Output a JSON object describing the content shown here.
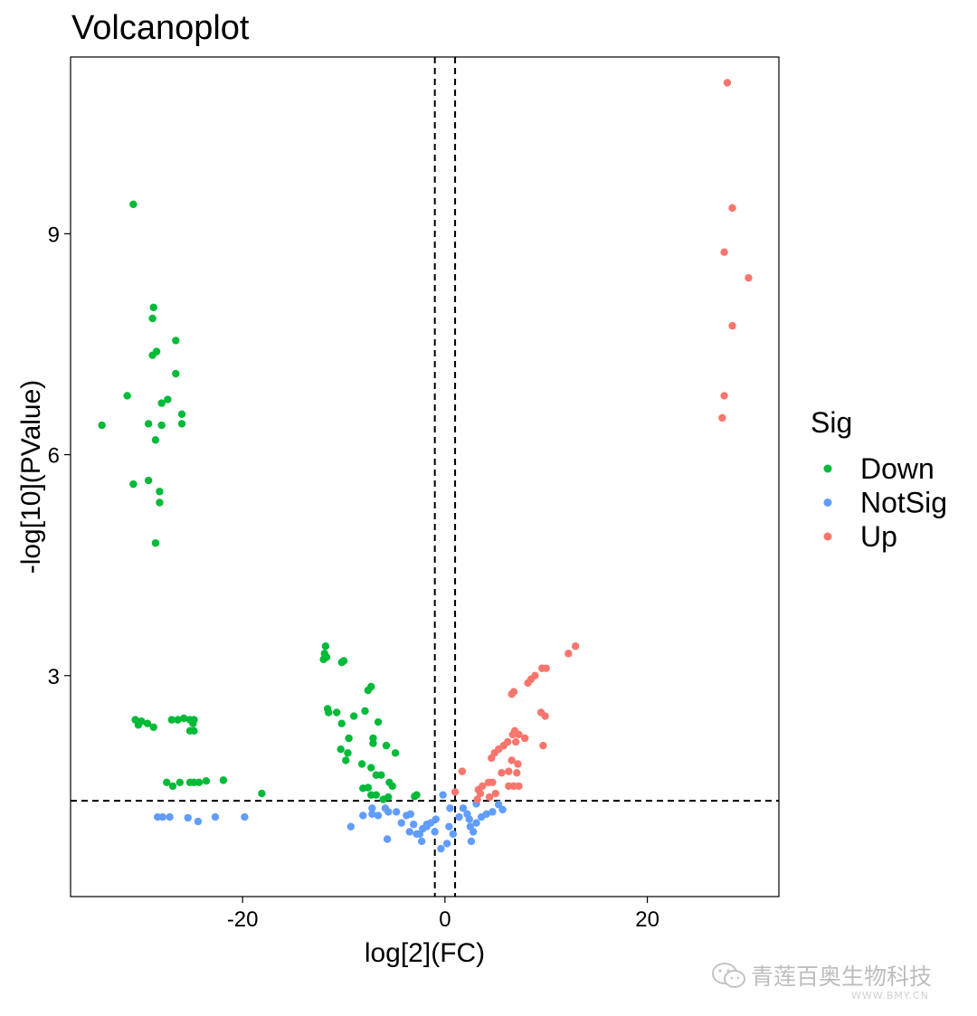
{
  "chart_data": {
    "type": "scatter",
    "title": "Volcanoplot",
    "xlabel": "log[2](FC)",
    "ylabel": "-log[10](PValue)",
    "xlim": [
      -37,
      33
    ],
    "ylim": [
      0.0,
      11.4
    ],
    "xticks": [
      -20,
      0,
      20
    ],
    "xtick_labels": [
      "-20",
      "0",
      "20"
    ],
    "yticks": [
      3,
      6,
      9
    ],
    "ytick_labels": [
      "3",
      "6",
      "9"
    ],
    "thresholds": {
      "vlines": [
        -1,
        1
      ],
      "hline": 1.3
    },
    "grid": false,
    "legend": {
      "title": "Sig",
      "position": "right"
    },
    "series": [
      {
        "name": "Down",
        "color": "#00BA38",
        "points": [
          [
            -30.8,
            9.4
          ],
          [
            -28.8,
            8.0
          ],
          [
            -28.9,
            7.85
          ],
          [
            -26.6,
            7.55
          ],
          [
            -28.5,
            7.4
          ],
          [
            -28.9,
            7.35
          ],
          [
            -26.6,
            7.1
          ],
          [
            -31.4,
            6.8
          ],
          [
            -27.4,
            6.75
          ],
          [
            -28.0,
            6.7
          ],
          [
            -26.0,
            6.55
          ],
          [
            -33.9,
            6.4
          ],
          [
            -29.3,
            6.42
          ],
          [
            -28.0,
            6.4
          ],
          [
            -26.0,
            6.42
          ],
          [
            -28.6,
            6.2
          ],
          [
            -30.8,
            5.6
          ],
          [
            -29.3,
            5.65
          ],
          [
            -28.2,
            5.5
          ],
          [
            -28.2,
            5.35
          ],
          [
            -28.6,
            4.8
          ],
          [
            -30.6,
            2.4
          ],
          [
            -30.0,
            2.38
          ],
          [
            -30.3,
            2.33
          ],
          [
            -29.4,
            2.35
          ],
          [
            -28.8,
            2.3
          ],
          [
            -27.0,
            2.4
          ],
          [
            -26.4,
            2.4
          ],
          [
            -25.8,
            2.42
          ],
          [
            -25.2,
            2.4
          ],
          [
            -24.8,
            2.4
          ],
          [
            -24.9,
            2.35
          ],
          [
            -25.2,
            2.25
          ],
          [
            -24.8,
            2.25
          ],
          [
            -27.5,
            1.55
          ],
          [
            -26.9,
            1.5
          ],
          [
            -26.2,
            1.55
          ],
          [
            -25.2,
            1.55
          ],
          [
            -24.8,
            1.55
          ],
          [
            -24.3,
            1.55
          ],
          [
            -23.6,
            1.57
          ],
          [
            -21.9,
            1.58
          ],
          [
            -18.1,
            1.4
          ],
          [
            -11.8,
            3.4
          ],
          [
            -11.9,
            3.3
          ],
          [
            -11.7,
            3.25
          ],
          [
            -12.0,
            3.22
          ],
          [
            -10.2,
            3.18
          ],
          [
            -10.0,
            3.2
          ],
          [
            -7.3,
            2.85
          ],
          [
            -7.6,
            2.8
          ],
          [
            -11.6,
            2.55
          ],
          [
            -11.5,
            2.5
          ],
          [
            -10.7,
            2.5
          ],
          [
            -9.0,
            2.45
          ],
          [
            -10.2,
            2.35
          ],
          [
            -7.9,
            2.52
          ],
          [
            -6.6,
            2.37
          ],
          [
            -9.5,
            2.15
          ],
          [
            -10.3,
            2.0
          ],
          [
            -9.6,
            1.95
          ],
          [
            -9.8,
            1.85
          ],
          [
            -7.1,
            2.15
          ],
          [
            -7.1,
            2.08
          ],
          [
            -5.8,
            2.05
          ],
          [
            -4.9,
            1.95
          ],
          [
            -8.2,
            1.8
          ],
          [
            -7.3,
            1.75
          ],
          [
            -6.8,
            1.65
          ],
          [
            -6.3,
            1.65
          ],
          [
            -8.1,
            1.47
          ],
          [
            -7.6,
            1.48
          ],
          [
            -5.5,
            1.55
          ],
          [
            -5.2,
            1.5
          ],
          [
            -6.8,
            1.38
          ],
          [
            -7.3,
            1.38
          ],
          [
            -6.1,
            1.32
          ],
          [
            -5.6,
            1.35
          ],
          [
            -2.8,
            1.38
          ],
          [
            -3.0,
            1.36
          ]
        ]
      },
      {
        "name": "NotSig",
        "color": "#619CFF",
        "points": [
          [
            -28.4,
            1.08
          ],
          [
            -27.9,
            1.08
          ],
          [
            -27.2,
            1.08
          ],
          [
            -25.4,
            1.07
          ],
          [
            -24.4,
            1.02
          ],
          [
            -22.7,
            1.08
          ],
          [
            -19.8,
            1.08
          ],
          [
            -9.3,
            0.95
          ],
          [
            -8.1,
            1.1
          ],
          [
            -7.2,
            1.2
          ],
          [
            -7.2,
            1.12
          ],
          [
            -6.6,
            1.1
          ],
          [
            -5.9,
            1.2
          ],
          [
            -5.6,
            1.15
          ],
          [
            -5.7,
            0.78
          ],
          [
            -4.8,
            1.15
          ],
          [
            -4.3,
            1.0
          ],
          [
            -3.8,
            1.1
          ],
          [
            -3.4,
            1.12
          ],
          [
            -3.1,
            0.98
          ],
          [
            -3.5,
            0.88
          ],
          [
            -2.8,
            0.85
          ],
          [
            -2.5,
            0.85
          ],
          [
            -2.2,
            0.92
          ],
          [
            -1.8,
            0.95
          ],
          [
            -2.3,
            0.75
          ],
          [
            -1.8,
            0.98
          ],
          [
            -1.4,
            1.0
          ],
          [
            -1.0,
            0.88
          ],
          [
            -0.9,
            1.05
          ],
          [
            -0.4,
            0.65
          ],
          [
            0.2,
            0.72
          ],
          [
            0.5,
            1.2
          ],
          [
            0.4,
            0.95
          ],
          [
            0.8,
            0.85
          ],
          [
            1.4,
            1.08
          ],
          [
            1.8,
            1.2
          ],
          [
            2.2,
            1.12
          ],
          [
            2.4,
            1.05
          ],
          [
            2.5,
            0.95
          ],
          [
            2.8,
            0.88
          ],
          [
            3.1,
            1.0
          ],
          [
            3.6,
            1.08
          ],
          [
            4.1,
            1.12
          ],
          [
            4.7,
            1.15
          ],
          [
            5.3,
            1.25
          ],
          [
            5.7,
            1.18
          ],
          [
            -0.2,
            1.38
          ],
          [
            2.6,
            0.75
          ],
          [
            3.1,
            1.26
          ]
        ]
      },
      {
        "name": "Up",
        "color": "#F8766D",
        "points": [
          [
            27.9,
            11.05
          ],
          [
            28.4,
            9.35
          ],
          [
            27.6,
            8.75
          ],
          [
            30.0,
            8.4
          ],
          [
            28.4,
            7.75
          ],
          [
            27.6,
            6.8
          ],
          [
            27.4,
            6.5
          ],
          [
            12.9,
            3.4
          ],
          [
            12.2,
            3.3
          ],
          [
            10.0,
            3.1
          ],
          [
            9.6,
            3.1
          ],
          [
            8.9,
            3.0
          ],
          [
            8.5,
            2.95
          ],
          [
            8.2,
            2.9
          ],
          [
            6.8,
            2.78
          ],
          [
            6.6,
            2.75
          ],
          [
            9.5,
            2.5
          ],
          [
            9.9,
            2.45
          ],
          [
            7.3,
            2.2
          ],
          [
            7.9,
            2.15
          ],
          [
            6.9,
            2.25
          ],
          [
            6.7,
            2.2
          ],
          [
            7.0,
            2.1
          ],
          [
            6.2,
            2.1
          ],
          [
            5.8,
            2.05
          ],
          [
            5.3,
            2.0
          ],
          [
            4.9,
            1.95
          ],
          [
            4.6,
            1.88
          ],
          [
            9.7,
            2.05
          ],
          [
            6.6,
            1.85
          ],
          [
            7.2,
            1.8
          ],
          [
            6.3,
            1.7
          ],
          [
            7.1,
            1.68
          ],
          [
            5.6,
            1.68
          ],
          [
            4.7,
            1.55
          ],
          [
            4.3,
            1.55
          ],
          [
            6.8,
            1.5
          ],
          [
            6.3,
            1.5
          ],
          [
            7.3,
            1.5
          ],
          [
            3.7,
            1.5
          ],
          [
            3.3,
            1.45
          ],
          [
            3.5,
            1.4
          ],
          [
            3.2,
            1.32
          ],
          [
            1.7,
            1.7
          ],
          [
            1.0,
            1.42
          ],
          [
            5.0,
            1.4
          ],
          [
            4.4,
            1.35
          ]
        ]
      }
    ]
  },
  "watermark": {
    "text": "青莲百奥生物科技",
    "url": "WWW.BMY.CN"
  }
}
